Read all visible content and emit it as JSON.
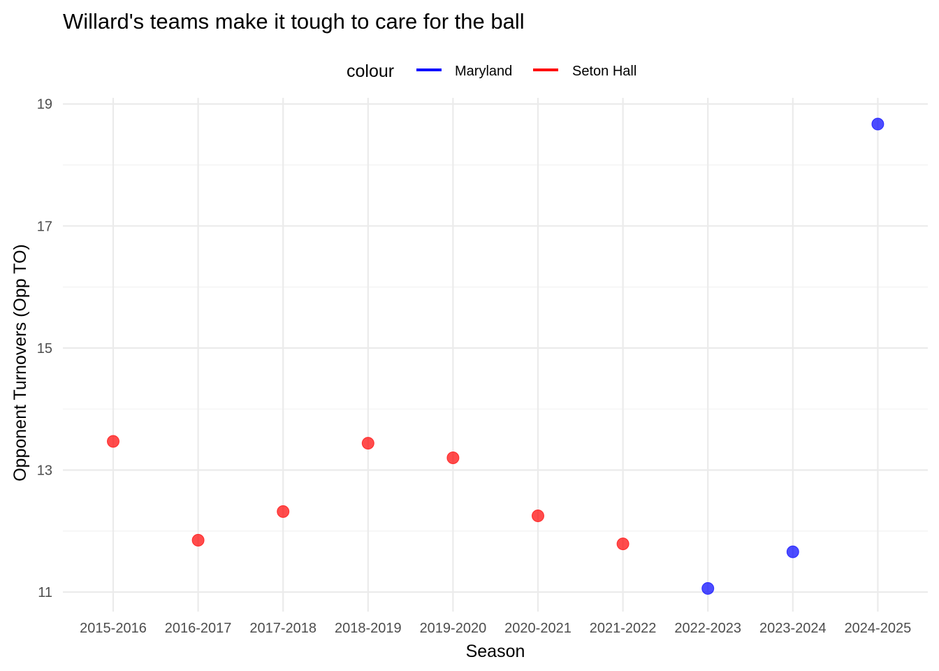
{
  "chart_data": {
    "type": "scatter",
    "title": "Willard's teams make it tough to care for the ball",
    "xlabel": "Season",
    "ylabel": "Opponent Turnovers (Opp TO)",
    "categories": [
      "2015-2016",
      "2016-2017",
      "2017-2018",
      "2018-2019",
      "2019-2020",
      "2020-2021",
      "2021-2022",
      "2022-2023",
      "2023-2024",
      "2024-2025"
    ],
    "y_ticks": [
      11,
      13,
      15,
      17,
      19
    ],
    "y_tick_labels": [
      "11",
      "13",
      "15",
      "17",
      "19"
    ],
    "ylim": [
      10.68,
      19.1
    ],
    "grid": true,
    "legend": {
      "title": "colour",
      "placement": "top",
      "entries": [
        {
          "label": "Maryland",
          "color": "#0000ff"
        },
        {
          "label": "Seton Hall",
          "color": "#ff0000"
        }
      ]
    },
    "series": [
      {
        "name": "Seton Hall",
        "color": "#ff0000",
        "points": [
          {
            "x": "2015-2016",
            "y": 13.47
          },
          {
            "x": "2016-2017",
            "y": 11.85
          },
          {
            "x": "2017-2018",
            "y": 12.32
          },
          {
            "x": "2018-2019",
            "y": 13.44
          },
          {
            "x": "2019-2020",
            "y": 13.2
          },
          {
            "x": "2020-2021",
            "y": 12.25
          },
          {
            "x": "2021-2022",
            "y": 11.79
          }
        ]
      },
      {
        "name": "Maryland",
        "color": "#0000ff",
        "points": [
          {
            "x": "2022-2023",
            "y": 11.06
          },
          {
            "x": "2023-2024",
            "y": 11.66
          },
          {
            "x": "2024-2025",
            "y": 18.67
          }
        ]
      }
    ]
  }
}
